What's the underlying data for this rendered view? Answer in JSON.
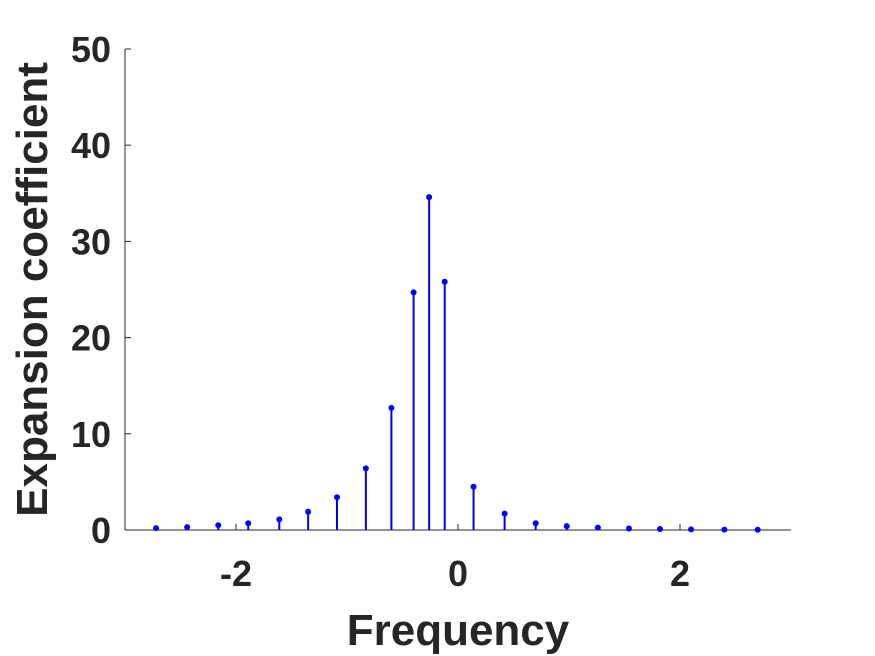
{
  "chart_data": {
    "type": "stem",
    "xlabel": "Frequency",
    "ylabel": "Expansion coefficient",
    "xlim": [
      -3,
      3
    ],
    "ylim": [
      0,
      50
    ],
    "xticks": [
      -2,
      0,
      2
    ],
    "yticks": [
      0,
      10,
      20,
      30,
      40,
      50
    ],
    "grid": false,
    "color": "#0000ff",
    "series": [
      {
        "x": [
          -2.72,
          -2.44,
          -2.16,
          -1.89,
          -1.61,
          -1.35,
          -1.09,
          -0.83,
          -0.6,
          -0.4,
          -0.26,
          -0.12,
          0.14,
          0.42,
          0.7,
          0.98,
          1.26,
          1.54,
          1.82,
          2.1,
          2.4,
          2.7
        ],
        "values": [
          0.2,
          0.3,
          0.5,
          0.7,
          1.1,
          1.9,
          3.4,
          6.4,
          12.7,
          24.7,
          34.6,
          25.8,
          4.5,
          1.7,
          0.7,
          0.4,
          0.25,
          0.15,
          0.1,
          0.06,
          0.04,
          0.02
        ]
      }
    ]
  }
}
